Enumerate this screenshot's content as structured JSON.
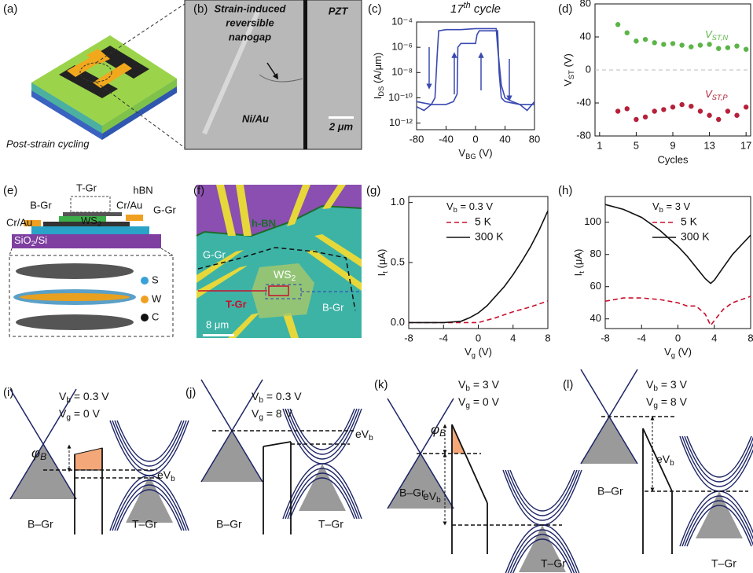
{
  "panel_labels": [
    "(a)",
    "(b)",
    "(c)",
    "(d)",
    "(e)",
    "(f)",
    "(g)",
    "(h)",
    "(i)",
    "(j)",
    "(k)",
    "(l)"
  ],
  "panel_a": {
    "caption": "Post-strain cycling"
  },
  "panel_b": {
    "annotation": [
      "Strain-induced",
      "reversible",
      "nanogap"
    ],
    "substrate": "PZT",
    "metal": "Ni/Au",
    "scale_bar": "2 μm"
  },
  "panel_e": {
    "top": "T-Gr",
    "bottom": "B-Gr",
    "hbn": "hBN",
    "contact_left": "Cr/Au",
    "contact_right": "Cr/Au",
    "gate": "G-Gr",
    "ws2": [
      "WS",
      "2"
    ],
    "substrate": [
      "SiO",
      "2",
      "/Si"
    ],
    "atoms": [
      "S",
      "W",
      "C"
    ]
  },
  "panel_f": {
    "hbn": "h-BN",
    "gate": "G-Gr",
    "ws2": [
      "WS",
      "2"
    ],
    "top": "T-Gr",
    "bottom": "B-Gr",
    "scale_bar": "8 μm"
  },
  "chart_data": [
    {
      "type": "line",
      "title": [
        "17",
        "th",
        " cycle"
      ],
      "x_label": [
        "V",
        "BG",
        " (V)"
      ],
      "y_label": [
        "I",
        "DS",
        " (A/μm)"
      ],
      "log_y": true,
      "xlim": [
        -80,
        80
      ],
      "xticks": [
        -80,
        -40,
        0,
        40,
        80
      ],
      "ylim": [
        3e-13,
        0.0001
      ],
      "yticks": [
        {
          "value": 0.0001,
          "label": "10⁻⁴"
        },
        {
          "value": 1e-06,
          "label": "10⁻⁶"
        },
        {
          "value": 1e-08,
          "label": "10⁻⁸"
        },
        {
          "value": 1e-10,
          "label": "10⁻¹⁰"
        },
        {
          "value": 1e-12,
          "label": "10⁻¹²"
        }
      ],
      "series": [
        {
          "color": "#3a4ab0",
          "x": [
            -80,
            -70,
            -60,
            -55,
            -52,
            -50,
            -40,
            -20,
            0,
            20,
            28,
            30,
            35,
            40,
            50,
            60,
            70,
            80
          ],
          "values": [
            2e-11,
            1e-11,
            3e-11,
            1e-10,
            3e-07,
            2e-05,
            2.5e-05,
            2.5e-05,
            3e-05,
            3e-05,
            3e-05,
            1e-06,
            1e-09,
            1e-10,
            5e-11,
            3e-11,
            1e-11,
            5e-11
          ]
        },
        {
          "color": "#3a4ab0",
          "x": [
            -80,
            -60,
            -40,
            -30,
            -25,
            -24,
            -20,
            -10,
            0,
            2,
            5,
            20,
            30,
            32,
            35,
            40,
            60,
            80
          ],
          "values": [
            5e-11,
            3e-11,
            3e-11,
            5e-11,
            2e-10,
            1e-06,
            2e-06,
            2e-06,
            2e-06,
            1e-05,
            2e-05,
            2e-05,
            2e-05,
            1e-08,
            1e-10,
            5e-11,
            3e-11,
            3e-11
          ]
        }
      ]
    },
    {
      "type": "scatter",
      "x_label": "Cycles",
      "y_label": [
        "V",
        "ST",
        " (V)"
      ],
      "xlim": [
        0.5,
        17.5
      ],
      "xticks": [
        1,
        5,
        9,
        13,
        17
      ],
      "ylim": [
        -80,
        80
      ],
      "yticks": [
        -80,
        -40,
        0,
        40,
        80
      ],
      "reference_line": 0,
      "series": [
        {
          "name": [
            "V",
            "ST,N"
          ],
          "color": "#5bb547",
          "x": [
            3,
            4,
            5,
            6,
            7,
            8,
            9,
            10,
            11,
            12,
            13,
            14,
            15,
            16,
            17
          ],
          "values": [
            55,
            45,
            35,
            37,
            33,
            31,
            32,
            30,
            28,
            30,
            31,
            26,
            27,
            29,
            25
          ]
        },
        {
          "name": [
            "V",
            "ST,P"
          ],
          "color": "#b5213a",
          "x": [
            3,
            4,
            5,
            6,
            7,
            8,
            9,
            10,
            11,
            12,
            13,
            14,
            15,
            16,
            17
          ],
          "values": [
            -50,
            -47,
            -60,
            -57,
            -50,
            -48,
            -45,
            -42,
            -44,
            -50,
            -55,
            -60,
            -50,
            -55,
            -45
          ]
        }
      ]
    },
    {
      "type": "line",
      "legend_title": [
        "V",
        "b",
        " = 0.3 V"
      ],
      "x_label": [
        "V",
        "g",
        " (V)"
      ],
      "y_label": [
        "I",
        "t",
        " (μA)"
      ],
      "xlim": [
        -8,
        8
      ],
      "xticks": [
        -8,
        -4,
        0,
        4,
        8
      ],
      "ylim": [
        -0.05,
        1.05
      ],
      "yticks": [
        {
          "value": 0,
          "label": "0.0"
        },
        {
          "value": 0.5,
          "label": "0.5"
        },
        {
          "value": 1,
          "label": "1.0"
        }
      ],
      "x": [
        -8,
        -6,
        -4,
        -2,
        -1,
        0,
        1,
        2,
        3,
        4,
        5,
        6,
        7,
        8
      ],
      "series": [
        {
          "name": "5 K",
          "color": "#c8102e",
          "dashed": true,
          "values": [
            0,
            0,
            0,
            0,
            0,
            0,
            0.02,
            0.04,
            0.065,
            0.09,
            0.11,
            0.13,
            0.155,
            0.18
          ]
        },
        {
          "name": "300 K",
          "color": "#111111",
          "dashed": false,
          "values": [
            0,
            0,
            0,
            0.01,
            0.04,
            0.08,
            0.14,
            0.22,
            0.3,
            0.4,
            0.51,
            0.63,
            0.77,
            0.93
          ]
        }
      ]
    },
    {
      "type": "line",
      "legend_title": [
        "V",
        "b",
        " = 3 V"
      ],
      "x_label": [
        "V",
        "g",
        " (V)"
      ],
      "y_label": [
        "I",
        "t",
        " (μA)"
      ],
      "xlim": [
        -8,
        8
      ],
      "xticks": [
        -8,
        -4,
        0,
        4,
        8
      ],
      "ylim": [
        34,
        116
      ],
      "yticks": [
        40,
        60,
        80,
        100
      ],
      "x": [
        -8,
        -6,
        -4,
        -2,
        0,
        1,
        2,
        3,
        3.6,
        4,
        5,
        6,
        7,
        8
      ],
      "series": [
        {
          "name": "5 K",
          "color": "#c8102e",
          "dashed": true,
          "values": [
            51,
            53,
            53,
            52,
            50,
            48,
            48,
            43,
            36,
            39,
            46,
            50,
            52,
            54
          ]
        },
        {
          "name": "300 K",
          "color": "#111111",
          "dashed": false,
          "values": [
            111,
            108,
            103,
            95,
            85,
            79,
            72,
            65,
            62,
            64,
            72,
            80,
            86,
            92
          ]
        }
      ]
    }
  ],
  "band_diagrams": [
    {
      "vb": [
        "V",
        "b",
        " = 0.3 V"
      ],
      "vg": [
        "V",
        "g",
        " = 0 V"
      ],
      "phi": [
        "φ",
        "B"
      ],
      "evb": [
        "eV",
        "b"
      ],
      "left": "B–Gr",
      "right": "T–Gr"
    },
    {
      "vb": [
        "V",
        "b",
        " = 0.3 V"
      ],
      "vg": [
        "V",
        "g",
        " = 8 V"
      ],
      "evb": [
        "eV",
        "b"
      ],
      "left": "B–Gr",
      "right": "T–Gr"
    },
    {
      "vb": [
        "V",
        "b",
        " = 3 V"
      ],
      "vg": [
        "V",
        "g",
        " = 0 V"
      ],
      "phi": [
        "φ",
        "B"
      ],
      "evb": [
        "eV",
        "b"
      ],
      "left": "B–Gr",
      "right": "T–Gr"
    },
    {
      "vb": [
        "V",
        "b",
        " = 3 V"
      ],
      "vg": [
        "V",
        "g",
        " = 8 V"
      ],
      "evb": [
        "eV",
        "b"
      ],
      "left": "B–Gr",
      "right": "T–Gr"
    }
  ]
}
